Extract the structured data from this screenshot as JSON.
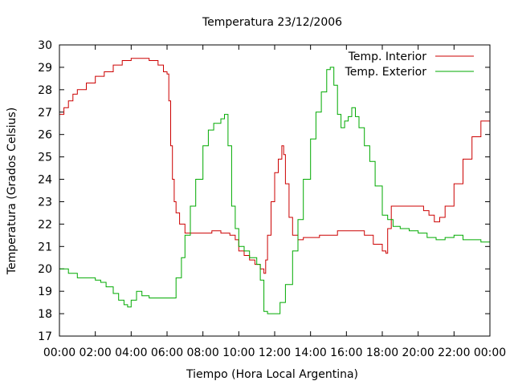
{
  "chart_data": {
    "type": "line",
    "title": "Temperatura 23/12/2006",
    "xlabel": "Tiempo (Hora Local Argentina)",
    "ylabel": "Temperatura (Grados Celsius)",
    "xlim": [
      0,
      24
    ],
    "ylim": [
      17,
      30
    ],
    "x_ticks": [
      0,
      2,
      4,
      6,
      8,
      10,
      12,
      14,
      16,
      18,
      20,
      22,
      24
    ],
    "x_tick_labels": [
      "00:00",
      "02:00",
      "04:00",
      "06:00",
      "08:00",
      "10:00",
      "12:00",
      "14:00",
      "16:00",
      "18:00",
      "20:00",
      "22:00",
      "00:00"
    ],
    "y_ticks": [
      17,
      18,
      19,
      20,
      21,
      22,
      23,
      24,
      25,
      26,
      27,
      28,
      29,
      30
    ],
    "y_tick_labels": [
      "17",
      "18",
      "19",
      "20",
      "21",
      "22",
      "23",
      "24",
      "25",
      "26",
      "27",
      "28",
      "29",
      "30"
    ],
    "grid": false,
    "legend_position": "top-right",
    "series": [
      {
        "name": "Temp. Interior",
        "color": "#cc0000",
        "x": [
          0,
          0.25,
          0.5,
          0.75,
          1,
          1.5,
          2,
          2.5,
          3,
          3.5,
          4,
          4.5,
          5,
          5.5,
          5.8,
          6,
          6.1,
          6.2,
          6.3,
          6.4,
          6.5,
          6.7,
          7,
          7.5,
          8,
          8.5,
          9,
          9.5,
          9.8,
          10,
          10.3,
          10.6,
          10.9,
          11.2,
          11.4,
          11.5,
          11.6,
          11.8,
          12,
          12.2,
          12.4,
          12.5,
          12.6,
          12.8,
          13,
          13.3,
          13.6,
          14,
          14.5,
          15,
          15.5,
          16,
          16.5,
          17,
          17.5,
          18,
          18.2,
          18.3,
          18.5,
          19,
          19.5,
          20,
          20.3,
          20.6,
          20.9,
          21.2,
          21.5,
          22,
          22.5,
          23,
          23.5,
          24
        ],
        "y": [
          26.9,
          27.2,
          27.5,
          27.8,
          28.0,
          28.3,
          28.6,
          28.8,
          29.1,
          29.3,
          29.4,
          29.4,
          29.3,
          29.1,
          28.8,
          28.7,
          27.5,
          25.5,
          24.0,
          23.0,
          22.5,
          22.0,
          21.6,
          21.6,
          21.6,
          21.7,
          21.6,
          21.5,
          21.3,
          20.8,
          20.6,
          20.4,
          20.2,
          20.0,
          19.8,
          20.4,
          21.5,
          23.0,
          24.3,
          24.9,
          25.5,
          25.1,
          23.8,
          22.3,
          21.5,
          21.3,
          21.4,
          21.4,
          21.5,
          21.5,
          21.7,
          21.7,
          21.7,
          21.5,
          21.1,
          20.8,
          20.7,
          21.8,
          22.8,
          22.8,
          22.8,
          22.8,
          22.6,
          22.4,
          22.1,
          22.3,
          22.8,
          23.8,
          24.9,
          25.9,
          26.6,
          27.1
        ]
      },
      {
        "name": "Temp. Exterior",
        "color": "#00aa00",
        "x": [
          0,
          0.5,
          1,
          1.5,
          2,
          2.3,
          2.6,
          3,
          3.3,
          3.6,
          3.8,
          4,
          4.3,
          4.6,
          5,
          5.5,
          6,
          6.5,
          6.8,
          7,
          7.3,
          7.6,
          8,
          8.3,
          8.6,
          9,
          9.2,
          9.4,
          9.6,
          9.8,
          10,
          10.3,
          10.6,
          11,
          11.2,
          11.4,
          11.6,
          12,
          12.3,
          12.6,
          13,
          13.3,
          13.6,
          14,
          14.3,
          14.6,
          14.9,
          15.1,
          15.3,
          15.5,
          15.7,
          15.9,
          16.1,
          16.3,
          16.5,
          16.7,
          17,
          17.3,
          17.6,
          18,
          18.3,
          18.6,
          19,
          19.5,
          20,
          20.5,
          21,
          21.5,
          22,
          22.5,
          23,
          23.5,
          24
        ],
        "y": [
          20.0,
          19.8,
          19.6,
          19.6,
          19.5,
          19.4,
          19.2,
          18.9,
          18.6,
          18.4,
          18.3,
          18.6,
          19.0,
          18.8,
          18.7,
          18.7,
          18.7,
          19.6,
          20.5,
          21.5,
          22.8,
          24.0,
          25.5,
          26.2,
          26.5,
          26.7,
          26.9,
          25.5,
          22.8,
          21.8,
          21.0,
          20.8,
          20.5,
          20.2,
          19.5,
          18.1,
          18.0,
          18.0,
          18.5,
          19.3,
          20.8,
          22.2,
          24.0,
          25.8,
          27.0,
          27.9,
          28.9,
          29.0,
          28.2,
          26.9,
          26.3,
          26.6,
          26.8,
          27.2,
          26.8,
          26.3,
          25.5,
          24.8,
          23.7,
          22.4,
          22.2,
          21.9,
          21.8,
          21.7,
          21.6,
          21.4,
          21.3,
          21.4,
          21.5,
          21.3,
          21.3,
          21.2,
          21.0
        ]
      }
    ]
  }
}
